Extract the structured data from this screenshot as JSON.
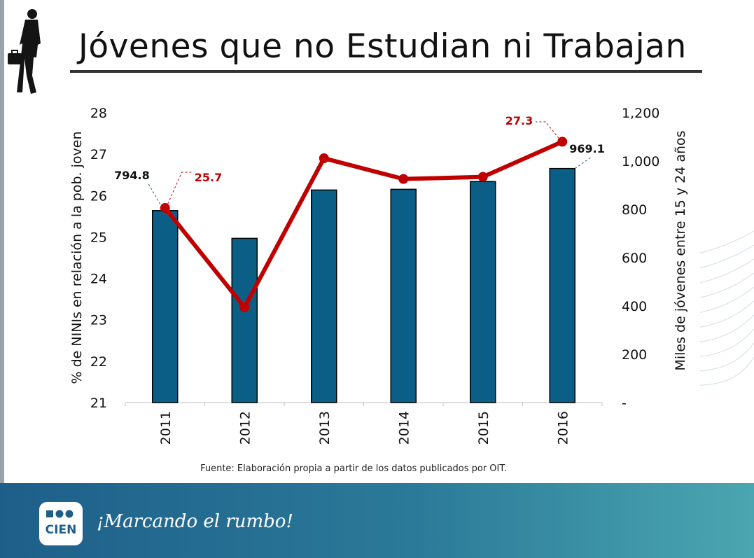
{
  "header": {
    "title": "Jóvenes que no Estudian ni Trabajan"
  },
  "chart_data": {
    "type": "bar+line",
    "categories": [
      "2011",
      "2012",
      "2013",
      "2014",
      "2015",
      "2016"
    ],
    "series": [
      {
        "name": "Miles de jóvenes entre 15 y 24 años",
        "kind": "bar",
        "axis": "right",
        "values": [
          794.8,
          680,
          880,
          883,
          915,
          969.1
        ],
        "labels": [
          "794.8",
          "",
          "",
          "",
          "",
          "969.1"
        ],
        "color": "#0b5f86"
      },
      {
        "name": "% de NINIs en relación a la pob. joven",
        "kind": "line",
        "axis": "left",
        "values": [
          25.7,
          23.3,
          26.9,
          26.4,
          26.45,
          27.3
        ],
        "labels": [
          "25.7",
          "",
          "",
          "",
          "",
          "27.3"
        ],
        "color": "#c00000"
      }
    ],
    "y_left": {
      "label": "% de NINIs en relación a la pob. joven",
      "lim": [
        21,
        28
      ],
      "ticks": [
        "21",
        "22",
        "23",
        "24",
        "25",
        "26",
        "27",
        "28"
      ]
    },
    "y_right": {
      "label": "Miles de jóvenes entre 15 y 24 años",
      "lim": [
        0,
        1200
      ],
      "ticks": [
        "-",
        "200",
        "400",
        "600",
        "800",
        "1,000",
        "1,200"
      ]
    },
    "grid": false,
    "legend": "none"
  },
  "source": "Fuente: Elaboración propia a partir de los datos publicados por OIT.",
  "footer": {
    "logo_text": "CIEN",
    "slogan": "¡Marcando el rumbo!"
  },
  "colors": {
    "bar": "#0b5f86",
    "line": "#c00000",
    "footer_start": "#1e5f8a",
    "footer_end": "#4aa6b0"
  }
}
